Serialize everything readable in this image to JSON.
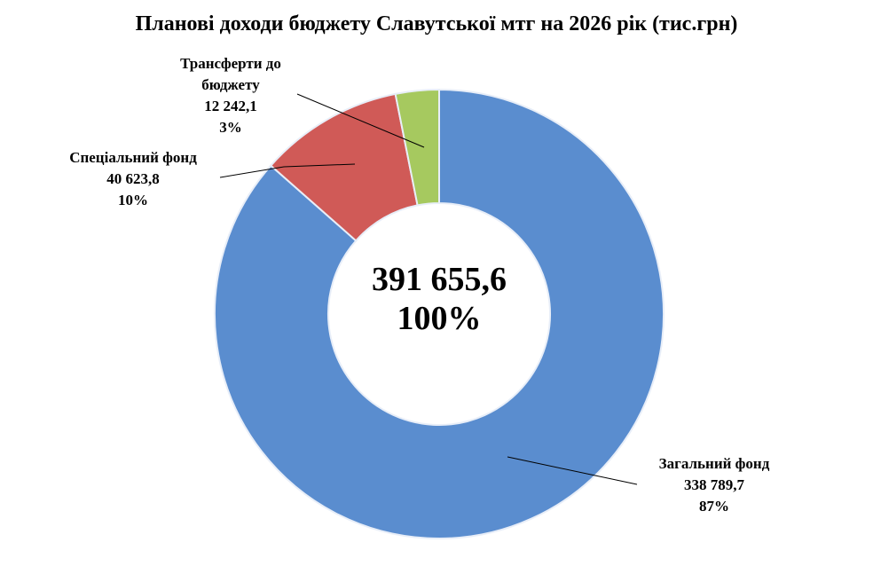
{
  "chart_data": {
    "type": "donut",
    "title": "Планові доходи бюджету Славутської мтг на 2026 рік (тис.грн)",
    "categories": [
      "Загальний фонд",
      "Спеціальний фонд",
      "Трансферти до бюджету"
    ],
    "values": [
      338789.7,
      40623.8,
      12242.1
    ],
    "value_labels": [
      "338 789,7",
      "40 623,8",
      "12 242,1"
    ],
    "percent_labels": [
      "87%",
      "10%",
      "3%"
    ],
    "colors": [
      "#5a8dcf",
      "#d05a57",
      "#a6c95f"
    ],
    "total": 391655.6,
    "total_label": "391 655,6",
    "total_percent_label": "100%"
  }
}
